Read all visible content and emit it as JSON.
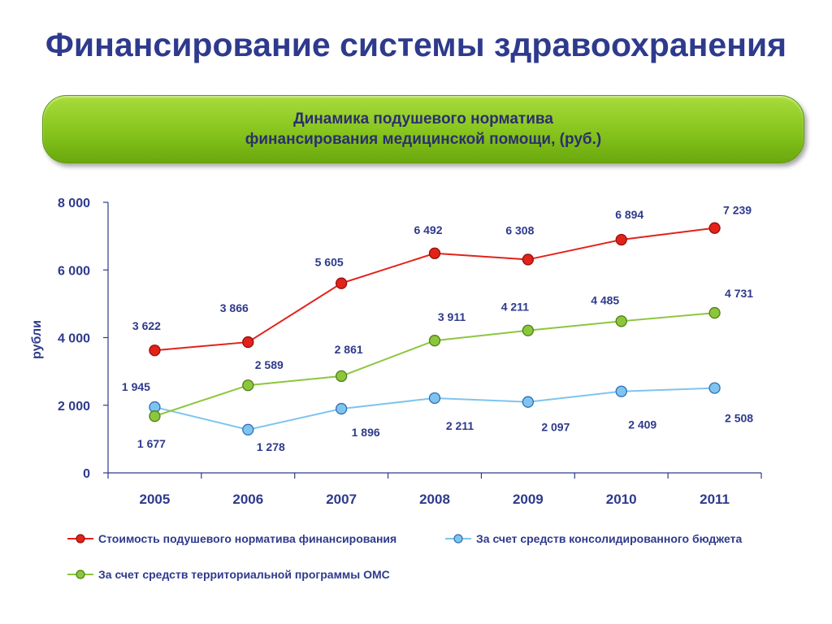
{
  "page": {
    "title": "Финансирование системы здравоохранения"
  },
  "banner": {
    "line1": "Динамика подушевого норматива",
    "line2": "финансирования медицинской помощи, (руб.)"
  },
  "chart_data": {
    "type": "line",
    "x": [
      "2005",
      "2006",
      "2007",
      "2008",
      "2009",
      "2010",
      "2011"
    ],
    "ylabel": "рубли",
    "ylim": [
      0,
      8000
    ],
    "yticks": [
      0,
      2000,
      4000,
      6000,
      8000
    ],
    "ytick_labels": [
      "0",
      "2 000",
      "4 000",
      "6 000",
      "8 000"
    ],
    "grid": false,
    "legend_position": "bottom",
    "series": [
      {
        "name": "Стоимость подушевого норматива финансирования",
        "color": "#e32219",
        "values": [
          3622,
          3866,
          5605,
          6492,
          6308,
          6894,
          7239
        ],
        "labels": [
          "3 622",
          "3 866",
          "5 605",
          "6 492",
          "6 308",
          "6 894",
          "7 239"
        ]
      },
      {
        "name": "За счет средств консолидированного бюджета",
        "color": "#7fc4ee",
        "values": [
          1945,
          1278,
          1896,
          2211,
          2097,
          2409,
          2508
        ],
        "labels": [
          "1 945",
          "1 278",
          "1 896",
          "2 211",
          "2 097",
          "2 409",
          "2 508"
        ]
      },
      {
        "name": "За счет средств территориальной программы ОМС",
        "color": "#8cc63f",
        "values": [
          1677,
          2589,
          2861,
          3911,
          4211,
          4485,
          4731
        ],
        "labels": [
          "1 677",
          "2 589",
          "2 861",
          "3 911",
          "4 211",
          "4 485",
          "4 731"
        ]
      }
    ]
  }
}
